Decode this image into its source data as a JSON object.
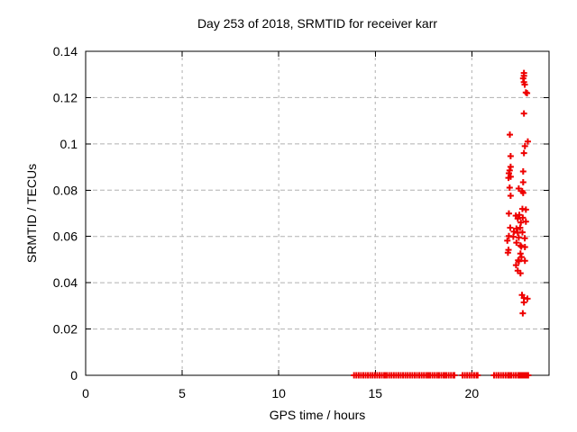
{
  "chart_data": {
    "type": "scatter",
    "title": "Day 253 of 2018, SRMTID for receiver karr",
    "xlabel": "GPS time / hours",
    "ylabel": "SRMTID / TECUs",
    "xlim": [
      0,
      24
    ],
    "ylim": [
      0,
      0.14
    ],
    "xticks": [
      0,
      5,
      10,
      15,
      20
    ],
    "xtick_labels": [
      "0",
      "5",
      "10",
      "15",
      "20"
    ],
    "yticks": [
      0,
      0.02,
      0.04,
      0.06,
      0.08,
      0.1,
      0.12,
      0.14
    ],
    "ytick_labels": [
      "0",
      "0.02",
      "0.04",
      "0.06",
      "0.08",
      "0.1",
      "0.12",
      "0.14"
    ],
    "grid": true,
    "legend_position": "none",
    "marker_shape": "plus",
    "marker_color": "#ee0000",
    "grid_color": "#b0b0b0",
    "axis_color": "#000000",
    "series": [
      {
        "name": "zero-level-band",
        "description": "dense run of points at SRMTID = 0",
        "y": 0,
        "x_segments": [
          [
            13.9,
            15.5
          ],
          [
            15.6,
            17.74
          ],
          [
            17.84,
            18.2
          ],
          [
            18.3,
            18.58
          ],
          [
            18.68,
            19.1
          ],
          [
            19.52,
            20.3
          ],
          [
            21.15,
            21.94
          ],
          [
            22.04,
            22.41
          ],
          [
            22.46,
            22.54
          ],
          [
            22.6,
            22.66
          ],
          [
            22.72,
            22.78
          ],
          [
            22.84,
            22.92
          ]
        ]
      },
      {
        "name": "tid-cluster",
        "description": "scatter cluster near hours 21.8-22.9",
        "points": [
          [
            22.7,
            0.1306
          ],
          [
            22.7,
            0.1294
          ],
          [
            22.66,
            0.1283
          ],
          [
            22.7,
            0.1267
          ],
          [
            22.74,
            0.1256
          ],
          [
            22.8,
            0.1222
          ],
          [
            22.86,
            0.1219
          ],
          [
            22.7,
            0.1131
          ],
          [
            21.97,
            0.104
          ],
          [
            22.9,
            0.101
          ],
          [
            22.75,
            0.099
          ],
          [
            22.7,
            0.096
          ],
          [
            22.01,
            0.0947
          ],
          [
            22.01,
            0.0901
          ],
          [
            21.96,
            0.0885
          ],
          [
            22.66,
            0.0881
          ],
          [
            21.92,
            0.0873
          ],
          [
            22.01,
            0.0858
          ],
          [
            21.9,
            0.0853
          ],
          [
            22.66,
            0.0834
          ],
          [
            21.96,
            0.0811
          ],
          [
            22.43,
            0.0807
          ],
          [
            22.61,
            0.0796
          ],
          [
            22.66,
            0.0788
          ],
          [
            22.01,
            0.0776
          ],
          [
            22.62,
            0.0719
          ],
          [
            22.8,
            0.0716
          ],
          [
            21.92,
            0.0699
          ],
          [
            22.46,
            0.0693
          ],
          [
            22.28,
            0.069
          ],
          [
            22.64,
            0.0681
          ],
          [
            22.38,
            0.0677
          ],
          [
            22.8,
            0.0664
          ],
          [
            22.54,
            0.066
          ],
          [
            21.99,
            0.0638
          ],
          [
            22.31,
            0.0634
          ],
          [
            22.5,
            0.0638
          ],
          [
            22.18,
            0.0621
          ],
          [
            22.38,
            0.0616
          ],
          [
            22.62,
            0.0618
          ],
          [
            21.92,
            0.0602
          ],
          [
            22.15,
            0.0599
          ],
          [
            22.43,
            0.0595
          ],
          [
            22.74,
            0.0592
          ],
          [
            21.84,
            0.0582
          ],
          [
            22.31,
            0.0573
          ],
          [
            22.52,
            0.0561
          ],
          [
            22.56,
            0.0556
          ],
          [
            22.75,
            0.0554
          ],
          [
            21.9,
            0.0542
          ],
          [
            21.87,
            0.053
          ],
          [
            22.52,
            0.0526
          ],
          [
            22.57,
            0.0511
          ],
          [
            22.4,
            0.0497
          ],
          [
            22.44,
            0.0493
          ],
          [
            22.75,
            0.0495
          ],
          [
            22.29,
            0.0476
          ],
          [
            22.38,
            0.0452
          ],
          [
            22.52,
            0.0441
          ],
          [
            22.6,
            0.0347
          ],
          [
            22.7,
            0.0334
          ],
          [
            22.88,
            0.0331
          ],
          [
            22.7,
            0.0315
          ],
          [
            22.64,
            0.0268
          ]
        ]
      }
    ]
  }
}
